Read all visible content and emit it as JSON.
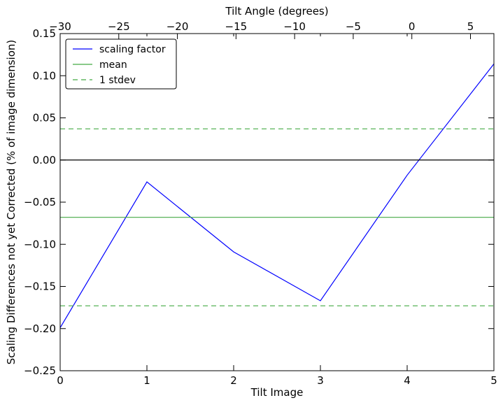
{
  "chart_data": {
    "type": "line",
    "title": "",
    "xlabel": "Tilt Image",
    "ylabel": "Scaling Differences not yet Corrected (% of image dimension)",
    "x2label": "Tilt Angle (degrees)",
    "xlim": [
      0,
      5
    ],
    "ylim": [
      -0.25,
      0.15
    ],
    "x2lim": [
      -30,
      7
    ],
    "xticks": [
      0,
      1,
      2,
      3,
      4,
      5
    ],
    "yticks": [
      -0.25,
      -0.2,
      -0.15,
      -0.1,
      -0.05,
      0.0,
      0.05,
      0.1,
      0.15
    ],
    "x2ticks": [
      -30,
      -25,
      -20,
      -15,
      -10,
      -5,
      0,
      5
    ],
    "xtick_labels": [
      "0",
      "1",
      "2",
      "3",
      "4",
      "5"
    ],
    "ytick_labels": [
      "−0.25",
      "−0.20",
      "−0.15",
      "−0.10",
      "−0.05",
      "0.00",
      "0.05",
      "0.10",
      "0.15"
    ],
    "x2tick_labels": [
      "−30",
      "−25",
      "−20",
      "−15",
      "−10",
      "−5",
      "0",
      "5"
    ],
    "grid": false,
    "legend_position": "top-left",
    "series": [
      {
        "name": "scaling factor",
        "color": "#0000ff",
        "style": "solid",
        "x": [
          0,
          1,
          2,
          3,
          4,
          5
        ],
        "y": [
          -0.199,
          -0.026,
          -0.109,
          -0.167,
          -0.018,
          0.114
        ]
      },
      {
        "name": "mean",
        "color": "#44aa44",
        "style": "solid",
        "x": [
          0,
          5
        ],
        "y": [
          -0.068,
          -0.068
        ]
      },
      {
        "name": "1 stdev",
        "color": "#44aa44",
        "style": "dashed",
        "x": [
          0,
          5
        ],
        "y": [
          0.037,
          0.037
        ]
      },
      {
        "name": "",
        "color": "#44aa44",
        "style": "dashed",
        "x": [
          0,
          5
        ],
        "y": [
          -0.173,
          -0.173
        ]
      },
      {
        "name": "",
        "color": "#000000",
        "style": "solid",
        "x": [
          0,
          5
        ],
        "y": [
          0.0,
          0.0
        ]
      }
    ],
    "legend": [
      "scaling factor",
      "mean",
      "1 stdev"
    ]
  }
}
